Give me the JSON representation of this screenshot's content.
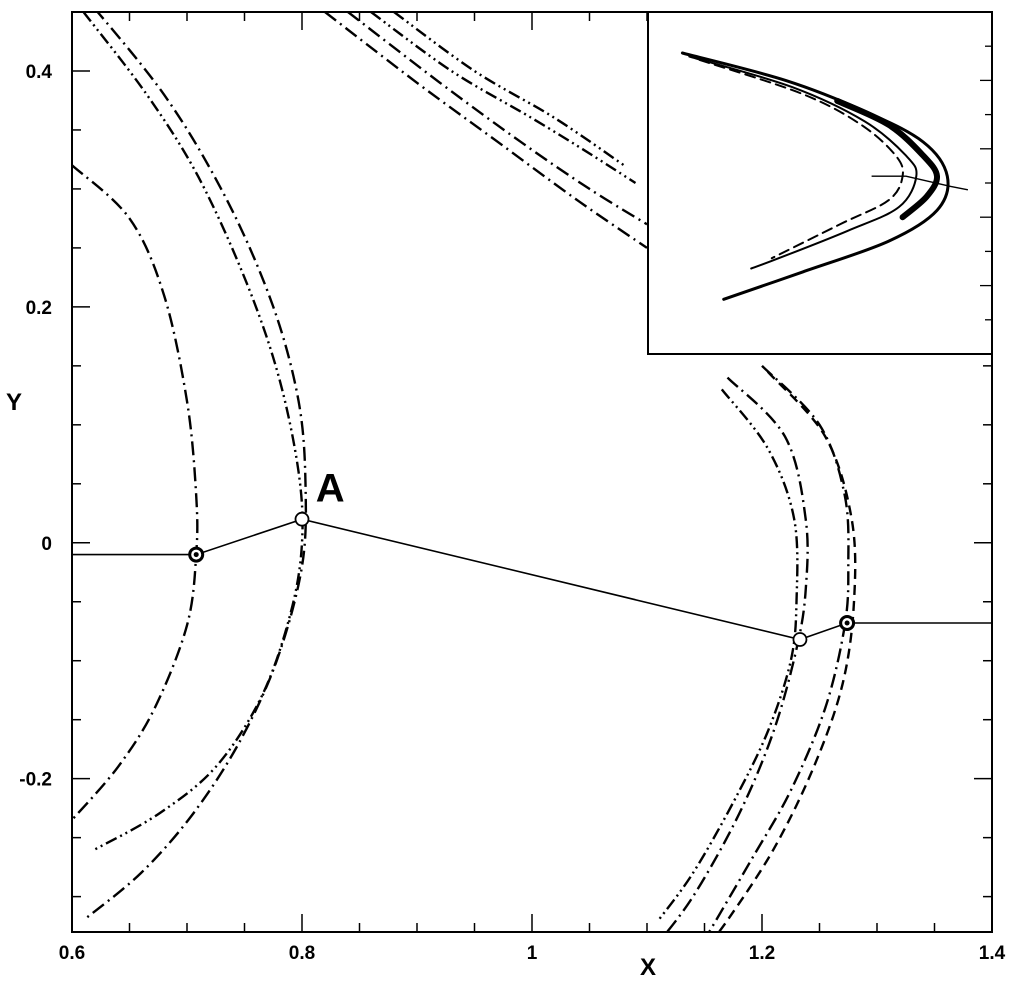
{
  "chart_data": {
    "type": "line",
    "title": "",
    "xlabel": "X",
    "ylabel": "Y",
    "xlim": [
      0.6,
      1.4
    ],
    "ylim": [
      -0.33,
      0.45
    ],
    "x_ticks": [
      {
        "value": 0.6,
        "label": "0.6"
      },
      {
        "value": 0.8,
        "label": "0.8"
      },
      {
        "value": 1.0,
        "label": "1"
      },
      {
        "value": 1.2,
        "label": "1.2"
      },
      {
        "value": 1.4,
        "label": "1.4"
      }
    ],
    "y_ticks": [
      {
        "value": 0.4,
        "label": "0.4"
      },
      {
        "value": 0.2,
        "label": "0.2"
      },
      {
        "value": 0.0,
        "label": "0"
      },
      {
        "value": -0.2,
        "label": "-0.2"
      }
    ],
    "grid": false,
    "curves": [
      {
        "style": "dashdot",
        "points": [
          [
            0.6,
            0.32
          ],
          [
            0.65,
            0.275
          ],
          [
            0.68,
            0.21
          ],
          [
            0.7,
            0.12
          ],
          [
            0.708,
            0.04
          ],
          [
            0.708,
            -0.01
          ],
          [
            0.7,
            -0.07
          ],
          [
            0.672,
            -0.14
          ],
          [
            0.64,
            -0.19
          ],
          [
            0.6,
            -0.235
          ]
        ]
      },
      {
        "style": "dashdot",
        "points": [
          [
            0.605,
            0.47
          ],
          [
            0.68,
            0.38
          ],
          [
            0.735,
            0.29
          ],
          [
            0.775,
            0.2
          ],
          [
            0.797,
            0.12
          ],
          [
            0.803,
            0.05
          ],
          [
            0.8,
            -0.02
          ],
          [
            0.778,
            -0.1
          ],
          [
            0.745,
            -0.17
          ],
          [
            0.705,
            -0.23
          ],
          [
            0.66,
            -0.28
          ],
          [
            0.61,
            -0.32
          ]
        ]
      },
      {
        "style": "dashdotdot",
        "points": [
          [
            0.61,
            0.45
          ],
          [
            0.665,
            0.38
          ],
          [
            0.71,
            0.31
          ],
          [
            0.752,
            0.22
          ],
          [
            0.78,
            0.14
          ],
          [
            0.797,
            0.06
          ],
          [
            0.8,
            0.0
          ],
          [
            0.79,
            -0.06
          ],
          [
            0.765,
            -0.13
          ],
          [
            0.725,
            -0.19
          ],
          [
            0.675,
            -0.23
          ],
          [
            0.62,
            -0.26
          ]
        ]
      },
      {
        "style": "dashdotdot",
        "points": [
          [
            0.86,
            0.45
          ],
          [
            0.93,
            0.4
          ],
          [
            1.0,
            0.36
          ],
          [
            1.05,
            0.33
          ],
          [
            1.09,
            0.305
          ]
        ]
      },
      {
        "style": "dashdot",
        "points": [
          [
            0.84,
            0.45
          ],
          [
            0.92,
            0.39
          ],
          [
            0.99,
            0.34
          ],
          [
            1.05,
            0.3
          ],
          [
            1.1,
            0.27
          ]
        ]
      },
      {
        "style": "dashdotdot",
        "points": [
          [
            0.88,
            0.45
          ],
          [
            0.95,
            0.4
          ],
          [
            1.02,
            0.36
          ],
          [
            1.08,
            0.32
          ]
        ]
      },
      {
        "style": "dashdot",
        "points": [
          [
            0.82,
            0.45
          ],
          [
            0.9,
            0.39
          ],
          [
            0.97,
            0.34
          ],
          [
            1.04,
            0.29
          ],
          [
            1.1,
            0.25
          ]
        ]
      },
      {
        "style": "dashdot",
        "points": [
          [
            1.17,
            0.14
          ],
          [
            1.22,
            0.09
          ],
          [
            1.238,
            0.02
          ],
          [
            1.238,
            -0.04
          ],
          [
            1.23,
            -0.09
          ],
          [
            1.21,
            -0.16
          ],
          [
            1.18,
            -0.23
          ],
          [
            1.14,
            -0.3
          ],
          [
            1.105,
            -0.345
          ]
        ]
      },
      {
        "style": "dashdot",
        "points": [
          [
            1.2,
            0.15
          ],
          [
            1.25,
            0.1
          ],
          [
            1.272,
            0.04
          ],
          [
            1.275,
            -0.02
          ],
          [
            1.272,
            -0.07
          ],
          [
            1.255,
            -0.14
          ],
          [
            1.225,
            -0.21
          ],
          [
            1.19,
            -0.27
          ],
          [
            1.145,
            -0.345
          ]
        ]
      },
      {
        "style": "dashdotdot",
        "points": [
          [
            1.165,
            0.13
          ],
          [
            1.205,
            0.08
          ],
          [
            1.228,
            0.02
          ],
          [
            1.23,
            -0.05
          ],
          [
            1.225,
            -0.1
          ],
          [
            1.205,
            -0.16
          ],
          [
            1.175,
            -0.22
          ],
          [
            1.14,
            -0.28
          ],
          [
            1.11,
            -0.32
          ]
        ]
      },
      {
        "style": "dashed",
        "points": [
          [
            1.205,
            0.145
          ],
          [
            1.255,
            0.09
          ],
          [
            1.278,
            0.02
          ],
          [
            1.28,
            -0.05
          ],
          [
            1.27,
            -0.12
          ],
          [
            1.245,
            -0.19
          ],
          [
            1.21,
            -0.26
          ],
          [
            1.17,
            -0.32
          ],
          [
            1.15,
            -0.345
          ]
        ]
      }
    ],
    "path_points": [
      [
        0.6,
        -0.01
      ],
      [
        0.708,
        -0.01
      ],
      [
        0.8,
        0.02
      ],
      [
        1.233,
        -0.082
      ],
      [
        1.274,
        -0.068
      ],
      [
        1.4,
        -0.068
      ]
    ],
    "markers": [
      {
        "x": 0.708,
        "y": -0.01,
        "filled": true
      },
      {
        "x": 0.8,
        "y": 0.02,
        "filled": false
      },
      {
        "x": 1.233,
        "y": -0.082,
        "filled": false
      },
      {
        "x": 1.274,
        "y": -0.068,
        "filled": true
      }
    ],
    "annotations": [
      {
        "text": "A",
        "x": 0.805,
        "y": 0.035
      }
    ],
    "inset": {
      "curves": [
        {
          "style": "solid",
          "width": 3,
          "points": [
            [
              0.1,
              0.88
            ],
            [
              0.4,
              0.8
            ],
            [
              0.63,
              0.71
            ],
            [
              0.8,
              0.62
            ],
            [
              0.87,
              0.52
            ],
            [
              0.84,
              0.42
            ],
            [
              0.7,
              0.33
            ],
            [
              0.45,
              0.24
            ],
            [
              0.22,
              0.16
            ]
          ]
        },
        {
          "style": "solid",
          "width": 2,
          "points": [
            [
              0.12,
              0.87
            ],
            [
              0.42,
              0.78
            ],
            [
              0.63,
              0.68
            ],
            [
              0.75,
              0.58
            ],
            [
              0.78,
              0.52
            ],
            [
              0.73,
              0.43
            ],
            [
              0.58,
              0.36
            ],
            [
              0.38,
              0.28
            ],
            [
              0.3,
              0.25
            ]
          ]
        },
        {
          "style": "dashed",
          "width": 2,
          "points": [
            [
              0.15,
              0.86
            ],
            [
              0.45,
              0.76
            ],
            [
              0.62,
              0.67
            ],
            [
              0.72,
              0.58
            ],
            [
              0.74,
              0.52
            ],
            [
              0.7,
              0.45
            ],
            [
              0.56,
              0.38
            ],
            [
              0.36,
              0.28
            ]
          ]
        },
        {
          "style": "solid",
          "width": 6,
          "points": [
            [
              0.55,
              0.74
            ],
            [
              0.7,
              0.67
            ],
            [
              0.8,
              0.58
            ],
            [
              0.84,
              0.52
            ],
            [
              0.81,
              0.46
            ],
            [
              0.74,
              0.4
            ]
          ]
        }
      ],
      "path": [
        [
          0.65,
          0.52
        ],
        [
          0.75,
          0.52
        ],
        [
          0.88,
          0.49
        ],
        [
          0.93,
          0.48
        ]
      ]
    }
  }
}
